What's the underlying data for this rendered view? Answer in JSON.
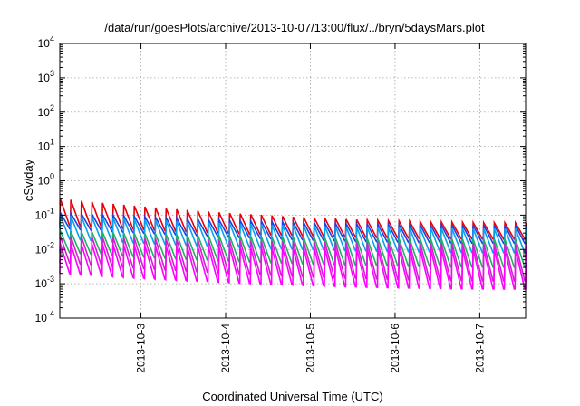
{
  "chart_data": {
    "type": "line",
    "title": "/data/run/goesPlots/archive/2013-10-07/13:00/flux/../bryn/5daysMars.plot",
    "xlabel": "Coordinated Universal Time (UTC)",
    "ylabel": "cSv/day",
    "yscale": "log",
    "ylim": [
      0.0001,
      10000
    ],
    "xlim": [
      "2013-10-02T01:00",
      "2013-10-07T13:00"
    ],
    "grid": true,
    "x_ticks": [
      {
        "label": "2013-10-3",
        "value": "2013-10-03T00:00"
      },
      {
        "label": "2013-10-4",
        "value": "2013-10-04T00:00"
      },
      {
        "label": "2013-10-5",
        "value": "2013-10-05T00:00"
      },
      {
        "label": "2013-10-6",
        "value": "2013-10-06T00:00"
      },
      {
        "label": "2013-10-7",
        "value": "2013-10-07T00:00"
      }
    ],
    "y_ticks": [
      {
        "base": "10",
        "exp": "-4",
        "value": 0.0001
      },
      {
        "base": "10",
        "exp": "-3",
        "value": 0.001
      },
      {
        "base": "10",
        "exp": "-2",
        "value": 0.01
      },
      {
        "base": "10",
        "exp": "-1",
        "value": 0.1
      },
      {
        "base": "10",
        "exp": "0",
        "value": 1
      },
      {
        "base": "10",
        "exp": "1",
        "value": 10
      },
      {
        "base": "10",
        "exp": "2",
        "value": 100
      },
      {
        "base": "10",
        "exp": "3",
        "value": 1000
      },
      {
        "base": "10",
        "exp": "4",
        "value": 10000
      }
    ],
    "series": [
      {
        "color": "#e8000b",
        "peak_start": 0.3,
        "peak_end": 0.06,
        "trough_start": 0.05,
        "trough_end": 0.02
      },
      {
        "color": "#2040e0",
        "peak_start": 0.12,
        "peak_end": 0.05,
        "trough_start": 0.04,
        "trough_end": 0.015
      },
      {
        "color": "#0aa0f0",
        "peak_start": 0.1,
        "peak_end": 0.04,
        "trough_start": 0.02,
        "trough_end": 0.008
      },
      {
        "color": "#20b060",
        "peak_start": 0.035,
        "peak_end": 0.02,
        "trough_start": 0.008,
        "trough_end": 0.003
      },
      {
        "color": "#d020d0",
        "peak_start": 0.025,
        "peak_end": 0.015,
        "trough_start": 0.004,
        "trough_end": 0.0012
      },
      {
        "color": "#ff00ff",
        "peak_start": 0.015,
        "peak_end": 0.01,
        "trough_start": 0.002,
        "trough_end": 0.0007
      }
    ],
    "cycle_hours": 3
  }
}
